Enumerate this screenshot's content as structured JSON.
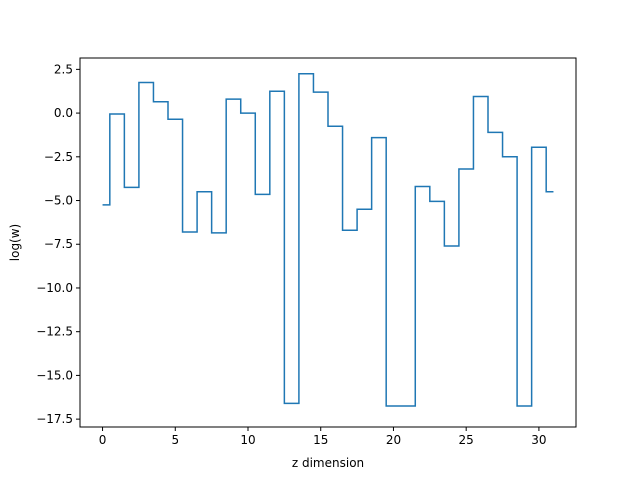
{
  "chart_data": {
    "type": "line",
    "drawstyle": "steps-mid",
    "title": "",
    "xlabel": "z dimension",
    "ylabel": "log(w)",
    "xlim": [
      -1.55,
      32.55
    ],
    "ylim": [
      -17.95,
      3.15
    ],
    "xticks": [
      0,
      5,
      10,
      15,
      20,
      25,
      30
    ],
    "xtick_labels": [
      "0",
      "5",
      "10",
      "15",
      "20",
      "25",
      "30"
    ],
    "yticks": [
      2.5,
      0.0,
      -2.5,
      -5.0,
      -7.5,
      -10.0,
      -12.5,
      -15.0,
      -17.5
    ],
    "ytick_labels": [
      "2.5",
      "0.0",
      "−2.5",
      "−5.0",
      "−7.5",
      "−10.0",
      "−12.5",
      "−15.0",
      "−17.5"
    ],
    "grid": false,
    "series": [
      {
        "color": "#1f77b4",
        "x": [
          0,
          1,
          2,
          3,
          4,
          5,
          6,
          7,
          8,
          9,
          10,
          11,
          12,
          13,
          14,
          15,
          16,
          17,
          18,
          19,
          20,
          21,
          22,
          23,
          24,
          25,
          26,
          27,
          28,
          29,
          30,
          31
        ],
        "values": [
          -5.25,
          -0.05,
          -4.25,
          1.75,
          0.65,
          -0.35,
          -6.8,
          -4.5,
          -6.85,
          0.8,
          0.0,
          -4.65,
          1.25,
          -16.6,
          2.25,
          1.2,
          -0.75,
          -6.7,
          -5.5,
          -1.4,
          -16.75,
          -16.75,
          -4.2,
          -5.05,
          -7.6,
          -3.2,
          0.95,
          -1.1,
          -2.5,
          -16.75,
          -1.95,
          -4.5
        ]
      }
    ]
  }
}
